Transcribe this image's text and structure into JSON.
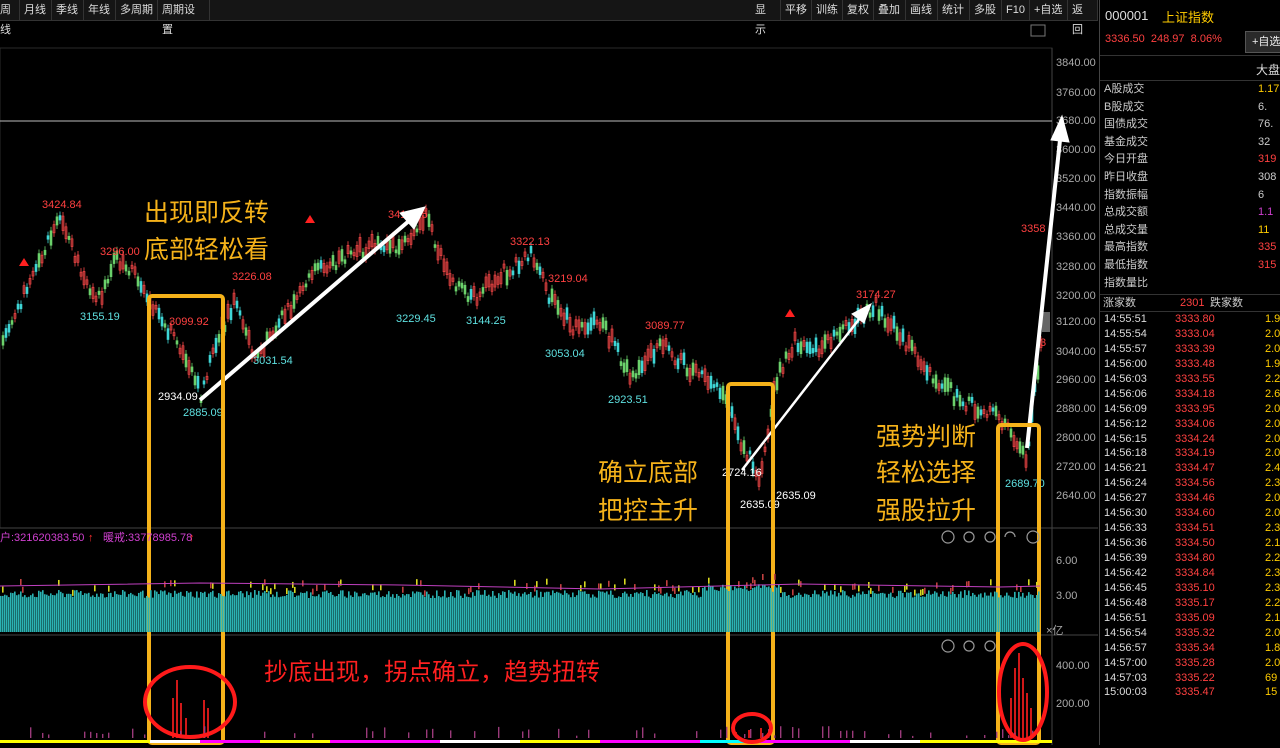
{
  "toolbar": {
    "left": [
      "周线",
      "月线",
      "季线",
      "年线",
      "多周期",
      "周期设置"
    ],
    "right": [
      "显示",
      "平移",
      "训练",
      "复权",
      "叠加",
      "画线",
      "统计",
      "多股",
      "F10",
      "+自选",
      "返回"
    ]
  },
  "y_axis_ticks": [
    "3840.00",
    "3760.00",
    "3680.00",
    "3600.00",
    "3520.00",
    "3440.00",
    "3360.00",
    "3280.00",
    "3200.00",
    "3120.00",
    "3040.00",
    "2960.00",
    "2880.00",
    "2800.00",
    "2720.00",
    "2640.00"
  ],
  "price_labels": [
    {
      "text": "3424.84",
      "color": "#ff4040"
    },
    {
      "text": "3296.00",
      "color": "#ff4040"
    },
    {
      "text": "3155.19",
      "color": "#5ee0e0"
    },
    {
      "text": "3099.92",
      "color": "#ff4040"
    },
    {
      "text": "2934.09",
      "color": "#ffffff"
    },
    {
      "text": "2885.09",
      "color": "#5ee0e0"
    },
    {
      "text": "3226.08",
      "color": "#ff4040"
    },
    {
      "text": "3031.54",
      "color": "#5ee0e0"
    },
    {
      "text": "3418.95",
      "color": "#ff4040"
    },
    {
      "text": "3229.45",
      "color": "#5ee0e0"
    },
    {
      "text": "3322.13",
      "color": "#ff4040"
    },
    {
      "text": "3144.25",
      "color": "#5ee0e0"
    },
    {
      "text": "3219.04",
      "color": "#ff4040"
    },
    {
      "text": "3053.04",
      "color": "#5ee0e0"
    },
    {
      "text": "3089.77",
      "color": "#ff4040"
    },
    {
      "text": "2923.51",
      "color": "#5ee0e0"
    },
    {
      "text": "3174.27",
      "color": "#ff4040"
    },
    {
      "text": "2724.16",
      "color": "#ffffff"
    },
    {
      "text": "2635.09",
      "color": "#ffffff"
    },
    {
      "text": "2635.09",
      "color": "#ffffff"
    },
    {
      "text": "2689.70",
      "color": "#5ee0e0"
    },
    {
      "text": "3358",
      "color": "#ff4040"
    },
    {
      "text": "3",
      "color": "#ff4040"
    }
  ],
  "annotations": {
    "box1_line1": "出现即反转",
    "box1_line2": "底部轻松看",
    "box2_line1": "确立底部",
    "box2_line2": "把控主升",
    "box3_line1": "强势判断",
    "box3_line2": "轻松选择",
    "box3_line3": "强股拉升",
    "indicator_caption": "抄底出现，拐点确立，趋势扭转"
  },
  "volume_panel": {
    "legend_left": "户:321620383.50",
    "legend_right": "暖戒:33778985.78",
    "ticks": [
      "6.00",
      "3.00"
    ],
    "unit": "×亿"
  },
  "indicator_panel": {
    "ticks": [
      "400.00",
      "200.00"
    ]
  },
  "right_panel": {
    "code": "000001",
    "name": "上证指数",
    "price": "3336.50",
    "change": "248.97",
    "change_pct": "8.06%",
    "add_button": "+自选",
    "tab_label": "大盘",
    "stats": [
      {
        "label": "A股成交",
        "value": "1.17",
        "color": "#ffcc00"
      },
      {
        "label": "B股成交",
        "value": "6.",
        "color": "#ccc"
      },
      {
        "label": "国债成交",
        "value": "76.",
        "color": "#ccc"
      },
      {
        "label": "基金成交",
        "value": "32",
        "color": "#ccc"
      },
      {
        "label": "今日开盘",
        "value": "319",
        "color": "#ff4040"
      },
      {
        "label": "昨日收盘",
        "value": "308",
        "color": "#ccc"
      },
      {
        "label": "指数振幅",
        "value": "6",
        "color": "#ccc"
      },
      {
        "label": "总成交额",
        "value": "1.1",
        "color": "#d040d0"
      },
      {
        "label": "总成交量",
        "value": "11",
        "color": "#ffcc00"
      },
      {
        "label": "最高指数",
        "value": "335",
        "color": "#ff4040"
      },
      {
        "label": "最低指数",
        "value": "315",
        "color": "#ff4040"
      },
      {
        "label": "指数量比",
        "value": "",
        "color": "#ccc"
      }
    ],
    "up_label": "涨家数",
    "up_count": "2301",
    "down_label": "跌家数",
    "ticks": [
      {
        "time": "14:55:51",
        "price": "3333.80",
        "vol": "1.9"
      },
      {
        "time": "14:55:54",
        "price": "3333.04",
        "vol": "2.0"
      },
      {
        "time": "14:55:57",
        "price": "3333.39",
        "vol": "2.0"
      },
      {
        "time": "14:56:00",
        "price": "3333.48",
        "vol": "1.9"
      },
      {
        "time": "14:56:03",
        "price": "3333.55",
        "vol": "2.2"
      },
      {
        "time": "14:56:06",
        "price": "3334.18",
        "vol": "2.6"
      },
      {
        "time": "14:56:09",
        "price": "3333.95",
        "vol": "2.0"
      },
      {
        "time": "14:56:12",
        "price": "3334.06",
        "vol": "2.0"
      },
      {
        "time": "14:56:15",
        "price": "3334.24",
        "vol": "2.0"
      },
      {
        "time": "14:56:18",
        "price": "3334.19",
        "vol": "2.0"
      },
      {
        "time": "14:56:21",
        "price": "3334.47",
        "vol": "2.4"
      },
      {
        "time": "14:56:24",
        "price": "3334.56",
        "vol": "2.3"
      },
      {
        "time": "14:56:27",
        "price": "3334.46",
        "vol": "2.0"
      },
      {
        "time": "14:56:30",
        "price": "3334.60",
        "vol": "2.0"
      },
      {
        "time": "14:56:33",
        "price": "3334.51",
        "vol": "2.3"
      },
      {
        "time": "14:56:36",
        "price": "3334.50",
        "vol": "2.1"
      },
      {
        "time": "14:56:39",
        "price": "3334.80",
        "vol": "2.2"
      },
      {
        "time": "14:56:42",
        "price": "3334.84",
        "vol": "2.3"
      },
      {
        "time": "14:56:45",
        "price": "3335.10",
        "vol": "2.3"
      },
      {
        "time": "14:56:48",
        "price": "3335.17",
        "vol": "2.2"
      },
      {
        "time": "14:56:51",
        "price": "3335.09",
        "vol": "2.1"
      },
      {
        "time": "14:56:54",
        "price": "3335.32",
        "vol": "2.0"
      },
      {
        "time": "14:56:57",
        "price": "3335.34",
        "vol": "1.8"
      },
      {
        "time": "14:57:00",
        "price": "3335.28",
        "vol": "2.0"
      },
      {
        "time": "14:57:03",
        "price": "3335.22",
        "vol": "69"
      },
      {
        "time": "15:00:03",
        "price": "3335.47",
        "vol": "15"
      }
    ]
  }
}
